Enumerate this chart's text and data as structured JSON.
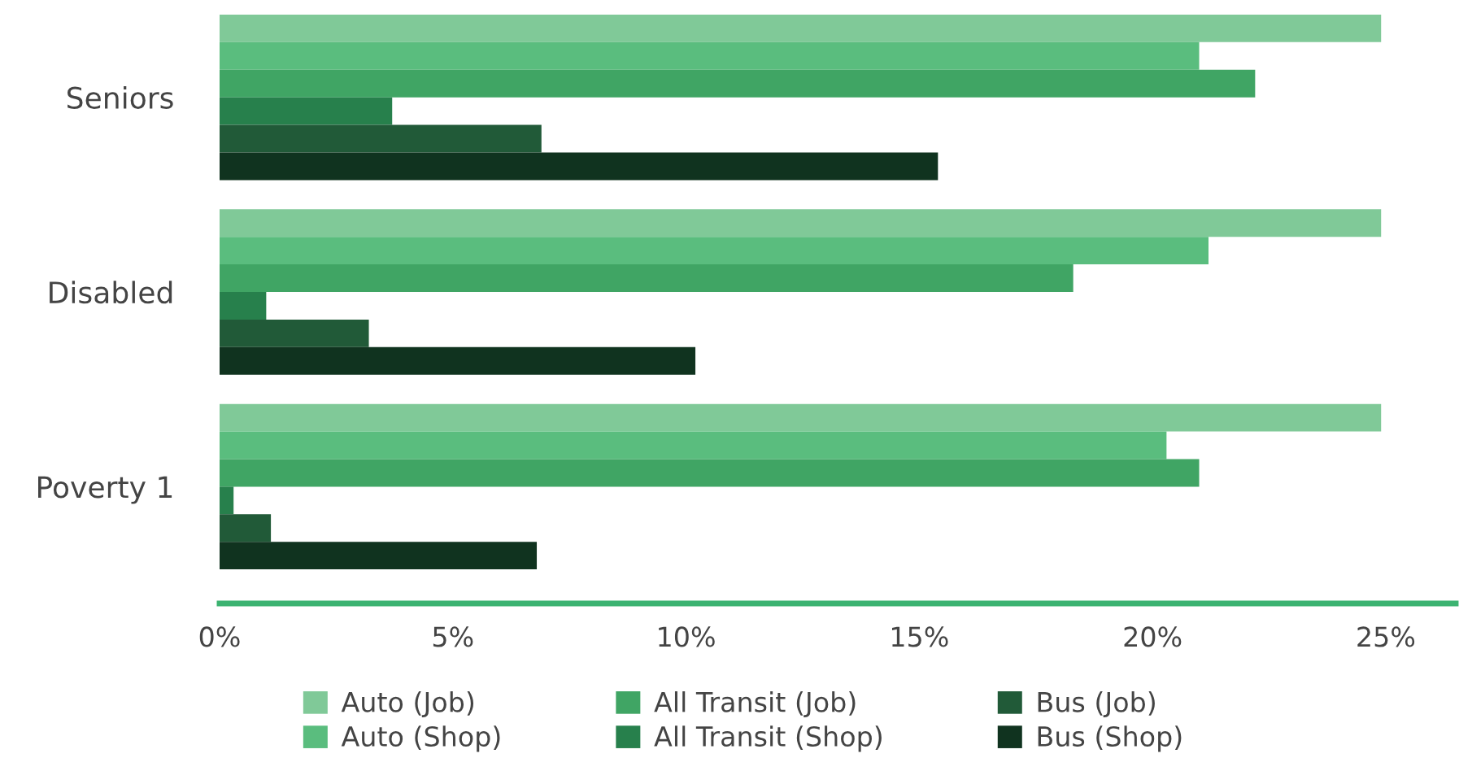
{
  "chart_data": {
    "type": "bar",
    "orientation": "horizontal",
    "categories": [
      "Seniors",
      "Disabled",
      "Poverty 1"
    ],
    "series": [
      {
        "name": "Auto (Job)",
        "color": "#80c998",
        "values": [
          24.9,
          24.9,
          24.9
        ]
      },
      {
        "name": "Auto (Shop)",
        "color": "#5abd7e",
        "values": [
          21.0,
          21.2,
          20.3
        ]
      },
      {
        "name": "All Transit (Job)",
        "color": "#40a564",
        "values": [
          22.2,
          18.3,
          21.0
        ]
      },
      {
        "name": "All Transit (Shop)",
        "color": "#27804c",
        "values": [
          3.7,
          1.0,
          0.3
        ]
      },
      {
        "name": "Bus (Job)",
        "color": "#215a38",
        "values": [
          6.9,
          3.2,
          1.1
        ]
      },
      {
        "name": "Bus (Shop)",
        "color": "#10331f",
        "values": [
          15.4,
          10.2,
          6.8
        ]
      }
    ],
    "xlim": [
      0,
      26.5
    ],
    "xticks": [
      {
        "value": 0,
        "label": "0%"
      },
      {
        "value": 5,
        "label": "5%"
      },
      {
        "value": 10,
        "label": "10%"
      },
      {
        "value": 15,
        "label": "15%"
      },
      {
        "value": 20,
        "label": "20%"
      },
      {
        "value": 25,
        "label": "25%"
      }
    ],
    "legend": "bottom",
    "grid": false
  }
}
